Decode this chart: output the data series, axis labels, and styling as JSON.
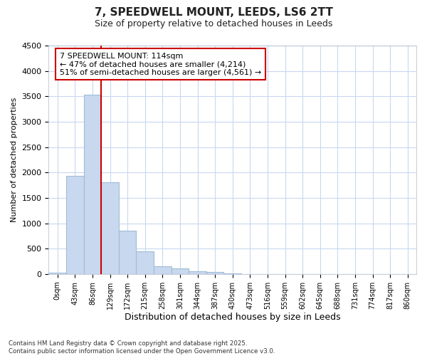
{
  "title_line1": "7, SPEEDWELL MOUNT, LEEDS, LS6 2TT",
  "title_line2": "Size of property relative to detached houses in Leeds",
  "xlabel": "Distribution of detached houses by size in Leeds",
  "ylabel": "Number of detached properties",
  "categories": [
    "0sqm",
    "43sqm",
    "86sqm",
    "129sqm",
    "172sqm",
    "215sqm",
    "258sqm",
    "301sqm",
    "344sqm",
    "387sqm",
    "430sqm",
    "473sqm",
    "516sqm",
    "559sqm",
    "602sqm",
    "645sqm",
    "688sqm",
    "731sqm",
    "774sqm",
    "817sqm",
    "860sqm"
  ],
  "values": [
    30,
    1940,
    3530,
    1810,
    855,
    450,
    155,
    105,
    60,
    40,
    5,
    0,
    0,
    0,
    0,
    0,
    0,
    0,
    0,
    0,
    0
  ],
  "bar_color": "#c8d8ee",
  "bar_edge_color": "#a0bcd8",
  "vline_color": "#cc0000",
  "annotation_text": "7 SPEEDWELL MOUNT: 114sqm\n← 47% of detached houses are smaller (4,214)\n51% of semi-detached houses are larger (4,561) →",
  "annotation_box_color": "#ffffff",
  "annotation_box_edge_color": "#cc0000",
  "ylim": [
    0,
    4500
  ],
  "yticks": [
    0,
    500,
    1000,
    1500,
    2000,
    2500,
    3000,
    3500,
    4000,
    4500
  ],
  "plot_bg_color": "#ffffff",
  "fig_bg_color": "#ffffff",
  "grid_color": "#c8d8f0",
  "footnote": "Contains HM Land Registry data © Crown copyright and database right 2025.\nContains public sector information licensed under the Open Government Licence v3.0."
}
